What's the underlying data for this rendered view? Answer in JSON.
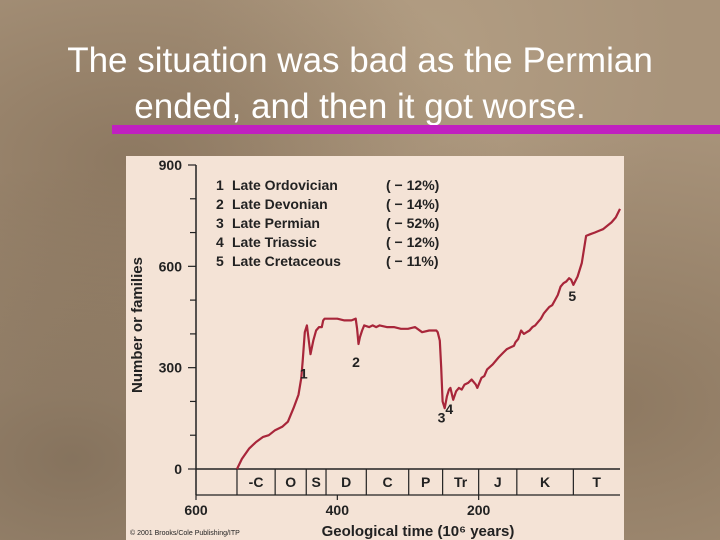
{
  "slide": {
    "title_line1": "The situation was bad as the Permian",
    "title_line2": "ended, and then it got worse."
  },
  "colors": {
    "background": "#a8937a",
    "title_text": "#ffffff",
    "title_underline": "#c020c0",
    "chart_background": "#f4e3d6",
    "series_line": "#a8263a",
    "chart_text": "#222222"
  },
  "chart_data": {
    "type": "line",
    "xlabel": "Geological time (10⁶ years)",
    "ylabel": "Number or families",
    "xlim": [
      600,
      0
    ],
    "ylim": [
      0,
      900
    ],
    "x_ticks": [
      "600",
      "400",
      "200"
    ],
    "x_tick_values": [
      600,
      400,
      200
    ],
    "y_ticks": [
      "900",
      "600",
      "300",
      "0"
    ],
    "y_tick_values": [
      900,
      600,
      300,
      0
    ],
    "periods": [
      {
        "label": "-C",
        "start": 542,
        "end": 488
      },
      {
        "label": "O",
        "start": 488,
        "end": 444
      },
      {
        "label": "S",
        "start": 444,
        "end": 416
      },
      {
        "label": "D",
        "start": 416,
        "end": 359
      },
      {
        "label": "C",
        "start": 359,
        "end": 299
      },
      {
        "label": "P",
        "start": 299,
        "end": 251
      },
      {
        "label": "Tr",
        "start": 251,
        "end": 200
      },
      {
        "label": "J",
        "start": 200,
        "end": 146
      },
      {
        "label": "K",
        "start": 146,
        "end": 66
      },
      {
        "label": "T",
        "start": 66,
        "end": 0
      }
    ],
    "legend": [
      {
        "num": "1",
        "name": "Late Ordovician",
        "pct": "( − 12%)"
      },
      {
        "num": "2",
        "name": "Late Devonian",
        "pct": "( − 14%)"
      },
      {
        "num": "3",
        "name": "Late Permian",
        "pct": "( − 52%)"
      },
      {
        "num": "4",
        "name": "Late Triassic",
        "pct": "( − 12%)"
      },
      {
        "num": "5",
        "name": "Late Cretaceous",
        "pct": "( − 11%)"
      }
    ],
    "annotations": [
      {
        "label": "1",
        "x": 446,
        "y": 285
      },
      {
        "label": "2",
        "x": 372,
        "y": 320
      },
      {
        "label": "3",
        "x": 251,
        "y": 155
      },
      {
        "label": "4",
        "x": 240,
        "y": 180
      },
      {
        "label": "5",
        "x": 66,
        "y": 515
      }
    ],
    "series": [
      {
        "x": [
          542,
          535,
          525,
          515,
          505,
          497,
          488,
          478,
          470,
          462,
          455,
          451,
          449,
          446,
          443,
          438,
          434,
          430,
          426,
          422,
          420,
          418,
          410,
          400,
          390,
          380,
          374,
          372,
          370,
          368,
          365,
          362,
          355,
          350,
          345,
          340,
          330,
          320,
          310,
          300,
          290,
          280,
          270,
          260,
          258,
          255,
          253,
          251,
          248,
          245,
          242,
          240,
          236,
          232,
          228,
          224,
          220,
          215,
          210,
          204,
          202,
          200,
          196,
          192,
          188,
          180,
          172,
          165,
          160,
          155,
          150,
          148,
          144,
          140,
          136,
          132,
          128,
          124,
          120,
          116,
          112,
          108,
          104,
          100,
          96,
          92,
          88,
          84,
          80,
          76,
          72,
          69,
          66,
          60,
          54,
          48,
          42,
          36,
          30,
          24,
          18,
          12,
          6,
          0
        ],
        "y": [
          0,
          30,
          60,
          80,
          95,
          100,
          115,
          125,
          140,
          180,
          220,
          270,
          320,
          405,
          425,
          340,
          380,
          410,
          420,
          420,
          440,
          445,
          445,
          445,
          440,
          440,
          445,
          415,
          370,
          390,
          410,
          425,
          420,
          425,
          420,
          425,
          420,
          420,
          415,
          415,
          420,
          405,
          410,
          410,
          405,
          380,
          300,
          200,
          180,
          215,
          235,
          240,
          205,
          230,
          240,
          235,
          250,
          255,
          265,
          250,
          240,
          250,
          270,
          275,
          295,
          310,
          330,
          345,
          355,
          360,
          365,
          375,
          385,
          410,
          400,
          405,
          410,
          420,
          425,
          435,
          445,
          460,
          470,
          480,
          485,
          500,
          515,
          540,
          550,
          555,
          565,
          560,
          545,
          570,
          610,
          690,
          695,
          700,
          705,
          710,
          720,
          730,
          745,
          770
        ]
      }
    ],
    "grid": false,
    "legend_position": "top-left",
    "credit": "© 2001 Brooks/Cole Publishing/ITP"
  }
}
